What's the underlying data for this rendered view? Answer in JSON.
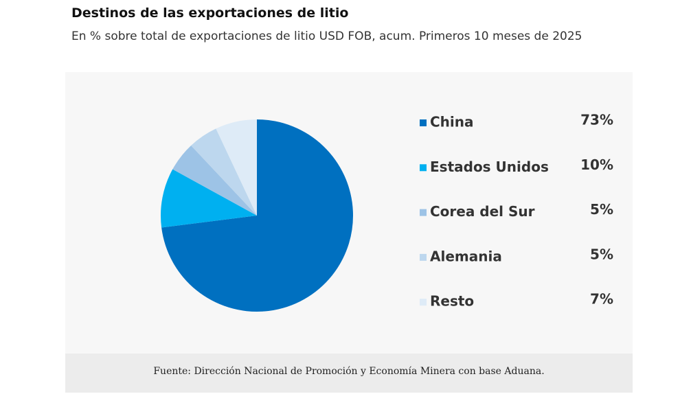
{
  "chart_data": {
    "type": "pie",
    "title": "Destinos de las exportaciones de litio",
    "subtitle": "En % sobre total de exportaciones de litio USD FOB, acum. Primeros 10 meses de 2025",
    "categories": [
      "China",
      "Estados Unidos",
      "Corea del Sur",
      "Alemania",
      "Resto"
    ],
    "values": [
      73,
      10,
      5,
      5,
      7
    ],
    "value_labels": [
      "73%",
      "10%",
      "5%",
      "5%",
      "7%"
    ],
    "colors": [
      "#0070c0",
      "#00b0f0",
      "#9dc3e6",
      "#bdd7ee",
      "#deebf7"
    ],
    "source": "Fuente: Dirección Nacional de Promoción y Economía Minera con base Aduana."
  }
}
